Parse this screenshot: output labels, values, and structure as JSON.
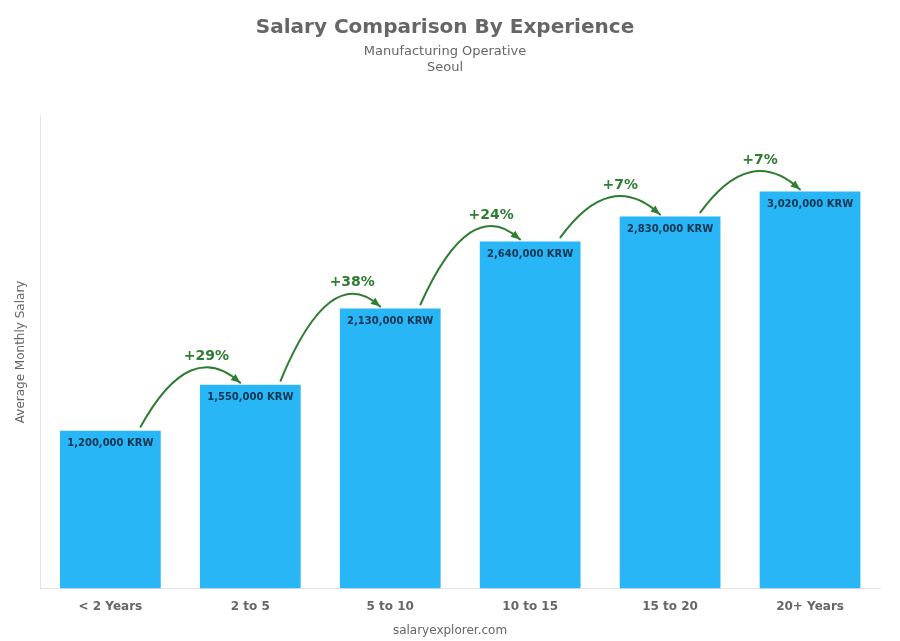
{
  "chart_data": {
    "type": "bar",
    "title": "Salary Comparison By Experience",
    "subtitle": [
      "Manufacturing Operative",
      "Seoul"
    ],
    "categories": [
      "< 2 Years",
      "2 to 5",
      "5 to 10",
      "10 to 15",
      "15 to 20",
      "20+ Years"
    ],
    "values": [
      1200000,
      1550000,
      2130000,
      2640000,
      2830000,
      3020000
    ],
    "value_labels": [
      "1,200,000 KRW",
      "1,550,000 KRW",
      "2,130,000 KRW",
      "2,640,000 KRW",
      "2,830,000 KRW",
      "3,020,000 KRW"
    ],
    "data_labels": true,
    "color": "#29b6f6",
    "ylabel": "Average Monthly Salary",
    "ylim": [
      0,
      3600000
    ],
    "tick_labels": "x",
    "grid": false,
    "annotations": [
      {
        "text": "+29%",
        "from": "< 2 Years",
        "to": "2 to 5"
      },
      {
        "text": "+38%",
        "from": "2 to 5",
        "to": "5 to 10"
      },
      {
        "text": "+24%",
        "from": "5 to 10",
        "to": "10 to 15"
      },
      {
        "text": "+7%",
        "from": "10 to 15",
        "to": "15 to 20"
      },
      {
        "text": "+7%",
        "from": "15 to 20",
        "to": "20+ Years"
      }
    ],
    "footer": "salaryexplorer.com"
  }
}
